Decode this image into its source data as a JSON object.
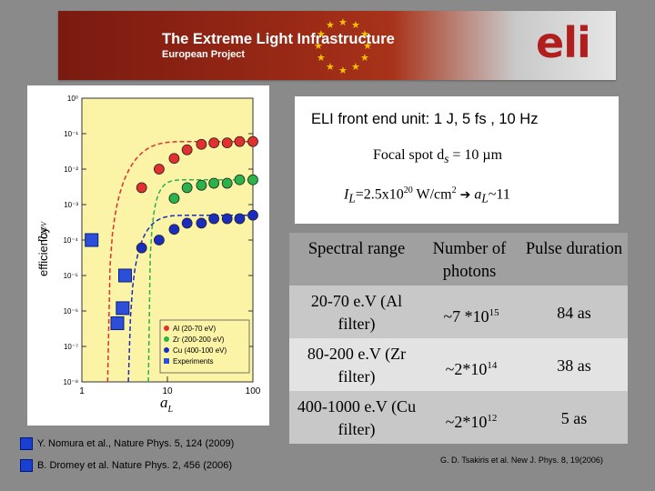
{
  "banner": {
    "title_part1": "The Extreme ",
    "title_part2": "Light",
    "title_part3": " Infrastructure",
    "subtitle": "European Project",
    "logo": "eli"
  },
  "plot": {
    "y_axis_label": "efficiency",
    "y_axis_symbol": "η",
    "y_axis_symbol_sub": "XUV",
    "x_axis_label": "a",
    "x_axis_label_sub": "L",
    "y_tick_labels": [
      "10⁰",
      "10⁻¹",
      "10⁻²",
      "10⁻³",
      "10⁻⁴",
      "10⁻⁵",
      "10⁻⁶",
      "10⁻⁷",
      "10⁻⁸"
    ],
    "x_tick_labels": [
      "1",
      "10",
      "100"
    ],
    "legend": [
      "Al (20-70 eV)",
      "Zr (200-200 eV)",
      "Cu (400-100 eV)",
      "Experiments"
    ]
  },
  "chart_data": {
    "type": "scatter",
    "x_scale": "log",
    "y_scale": "log",
    "xlim": [
      1,
      100
    ],
    "ylim": [
      1e-08,
      1
    ],
    "series": [
      {
        "name": "Al (20-70 eV)",
        "color": "#e23030",
        "points": [
          [
            5,
            0.003
          ],
          [
            8,
            0.01
          ],
          [
            12,
            0.02
          ],
          [
            17,
            0.035
          ],
          [
            25,
            0.05
          ],
          [
            35,
            0.055
          ],
          [
            50,
            0.055
          ],
          [
            70,
            0.06
          ],
          [
            100,
            0.06
          ]
        ]
      },
      {
        "name": "Zr (200-200 eV)",
        "color": "#29b34a",
        "points": [
          [
            12,
            0.0015
          ],
          [
            17,
            0.003
          ],
          [
            25,
            0.0035
          ],
          [
            35,
            0.004
          ],
          [
            50,
            0.004
          ],
          [
            70,
            0.005
          ],
          [
            100,
            0.005
          ]
        ]
      },
      {
        "name": "Cu (400-100 eV)",
        "color": "#1a2dbf",
        "points": [
          [
            5,
            6e-05
          ],
          [
            8,
            0.0001
          ],
          [
            12,
            0.0002
          ],
          [
            17,
            0.0003
          ],
          [
            25,
            0.0003
          ],
          [
            35,
            0.0004
          ],
          [
            50,
            0.0004
          ],
          [
            70,
            0.0004
          ],
          [
            100,
            0.0005
          ]
        ]
      },
      {
        "name": "Experiments",
        "color": "#2b4fd9",
        "points": [
          [
            1.3,
            0.0001
          ],
          [
            3.2,
            1e-05
          ],
          [
            3.0,
            1.2e-06
          ],
          [
            2.6,
            4.5e-07
          ]
        ]
      }
    ]
  },
  "references": {
    "ref1": "Y. Nomura et al., Nature Phys. 5, 124 (2009)",
    "ref2": "B. Dromey  et al.  Nature Phys. 2, 456 (2006)",
    "ref3": "G. D. Tsakiris et al. New J. Phys. 8, 19(2006)"
  },
  "info": {
    "front_end": "ELI front end unit: 1 J, 5 fs , 10 Hz",
    "focal_spot": "Focal spot d",
    "focal_sub": "s",
    "focal_value": " = 10 µm",
    "intensity_prefix": "I",
    "intensity_sub": "L",
    "intensity_value": "=2.5x10",
    "intensity_exp": "20",
    "intensity_unit": " W/cm",
    "intensity_unit_exp": "2",
    "arrow": "➔",
    "al_label": "a",
    "al_sub": "L",
    "al_value": "~11"
  },
  "table": {
    "headers": [
      "Spectral range",
      "Number of photons",
      "Pulse duration"
    ],
    "rows": [
      {
        "range": "20-70 e.V (Al filter)",
        "photons_base": "~7 *10",
        "photons_exp": "15",
        "duration": "84 as"
      },
      {
        "range": "80-200 e.V (Zr filter)",
        "photons_base": "~2*10",
        "photons_exp": "14",
        "duration": "38 as"
      },
      {
        "range": "400-1000 e.V (Cu filter)",
        "photons_base": "~2*10",
        "photons_exp": "12",
        "duration": "5 as"
      }
    ]
  }
}
